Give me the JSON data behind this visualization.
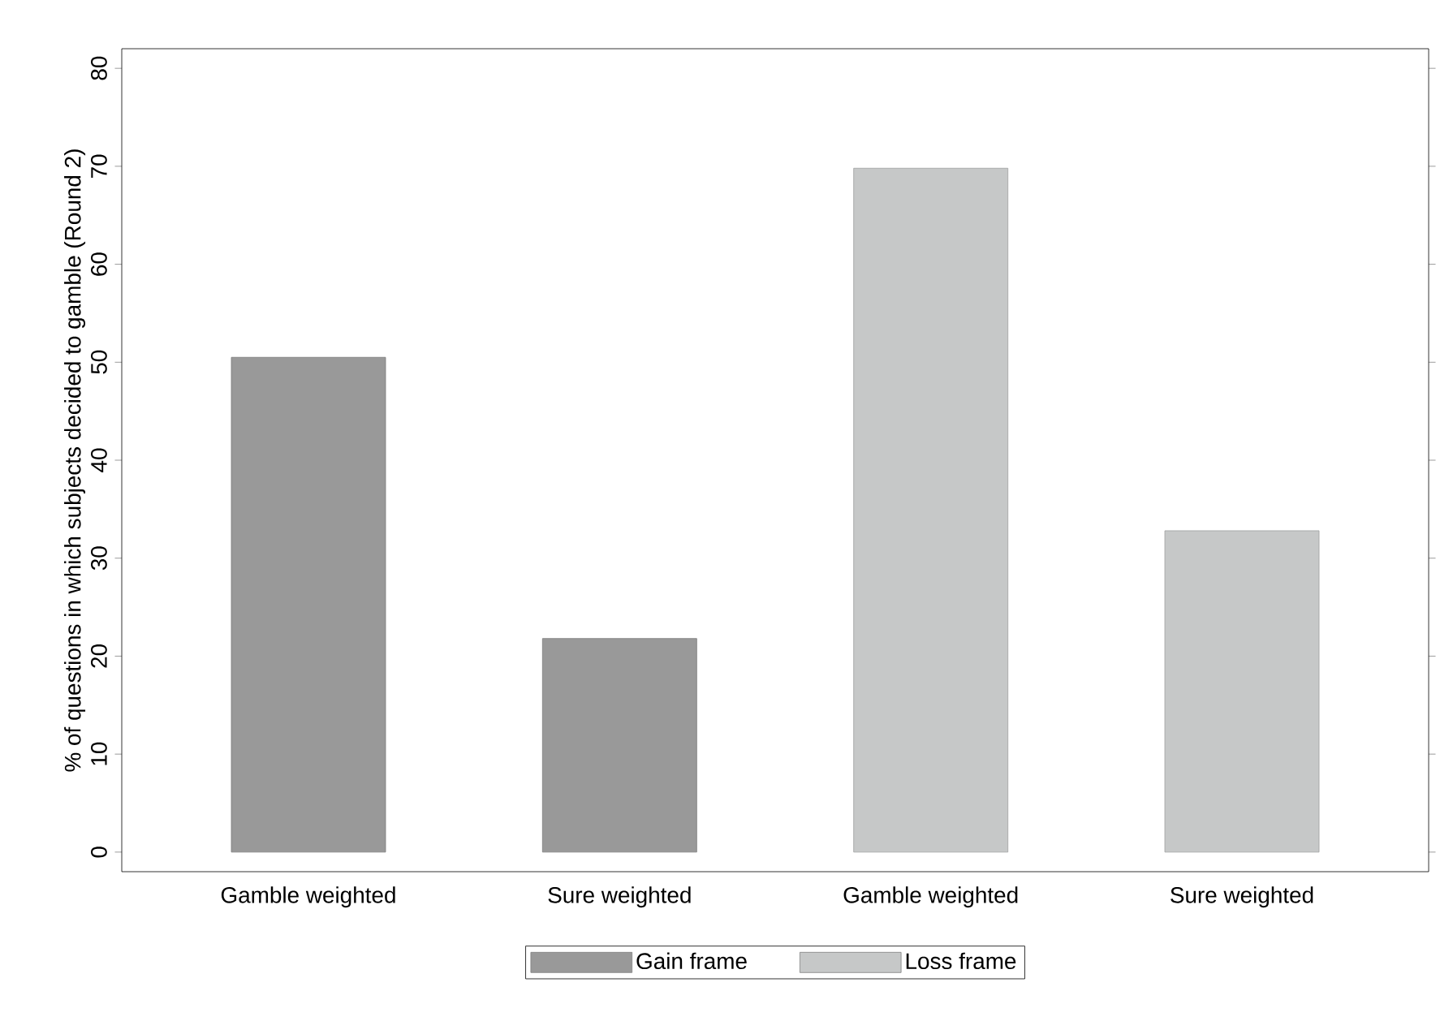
{
  "chart_data": {
    "type": "bar",
    "ylabel": "% of questions in which subjects decided to gamble (Round 2)",
    "categories": [
      "Gamble weighted",
      "Sure weighted",
      "Gamble weighted",
      "Sure weighted"
    ],
    "series": [
      {
        "name": "Gain frame",
        "color": "#999999",
        "values": [
          50.5,
          21.8,
          null,
          null
        ]
      },
      {
        "name": "Loss frame",
        "color": "#c6c8c8",
        "values": [
          null,
          null,
          69.8,
          32.8
        ]
      }
    ],
    "ylim": [
      -2,
      82
    ],
    "yticks": [
      0,
      10,
      20,
      30,
      40,
      50,
      60,
      70,
      80
    ],
    "grid": false,
    "legend": "bottom"
  }
}
